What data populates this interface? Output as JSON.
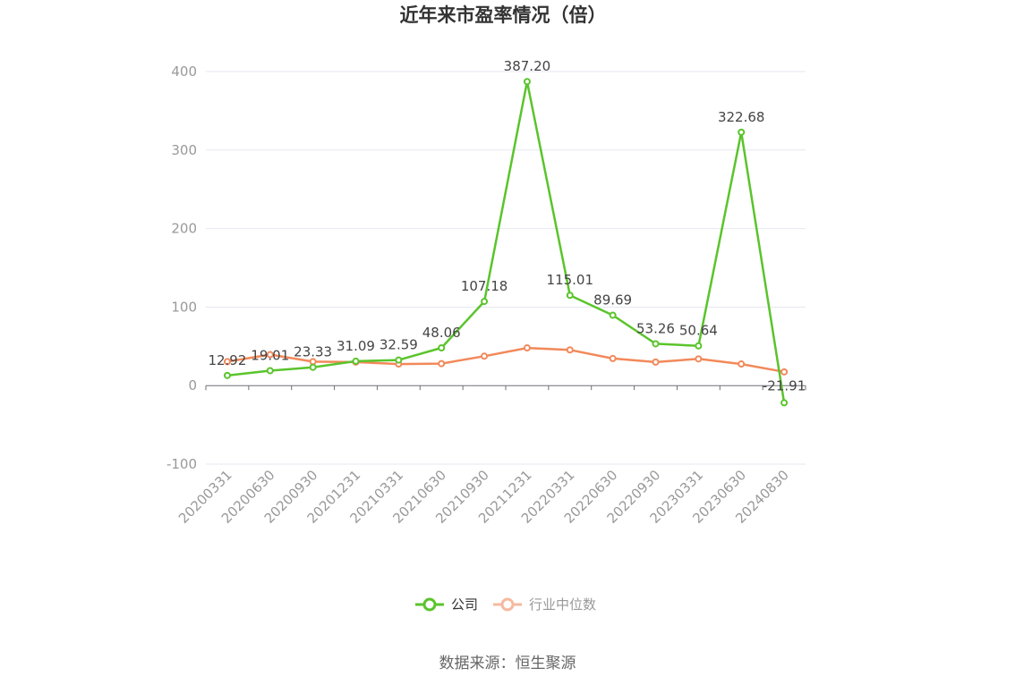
{
  "chart_data": {
    "type": "line",
    "title": "近年来市盈率情况（倍）",
    "categories": [
      "20200331",
      "20200630",
      "20200930",
      "20201231",
      "20210331",
      "20210630",
      "20210930",
      "20211231",
      "20220331",
      "20220630",
      "20220930",
      "20230331",
      "20230630",
      "20240830"
    ],
    "ylim": [
      -100,
      400
    ],
    "yticks": [
      400,
      300,
      200,
      100,
      0,
      -100
    ],
    "grid": true,
    "legend_position": "bottom",
    "series": [
      {
        "name": "公司",
        "color": "#5ac42c",
        "values": [
          12.92,
          19.01,
          23.33,
          31.09,
          32.59,
          48.06,
          107.18,
          387.2,
          115.01,
          89.69,
          53.26,
          50.64,
          322.68,
          -21.91
        ],
        "labels": [
          "12.92",
          "19.01",
          "23.33",
          "31.09",
          "32.59",
          "48.06",
          "107.18",
          "387.20",
          "115.01",
          "89.69",
          "53.26",
          "50.64",
          "322.68",
          "-21.91"
        ]
      },
      {
        "name": "行业中位数",
        "color": "#f2895a",
        "legend_color": "#f7b9a0",
        "values": [
          30.5,
          39.5,
          30.5,
          30.0,
          27.5,
          28.0,
          37.5,
          48.0,
          45.5,
          34.5,
          30.0,
          34.0,
          27.5,
          17.5
        ]
      }
    ]
  },
  "source_text": "数据来源：恒生聚源"
}
